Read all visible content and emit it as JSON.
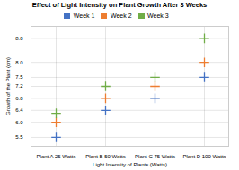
{
  "chart_data": {
    "type": "scatter",
    "title": "Effect of Light Intensity on Plant Growth After 3 Weeks",
    "xlabel": "Light Intensity of Plants (Watts)",
    "ylabel": "Growth of the Plant (cm)",
    "categories": [
      "Plant A 25 Watts",
      "Plant B 50 Watts",
      "Plant C 75 Watts",
      "Plant D 100 Watts"
    ],
    "series": [
      {
        "name": "Week 1",
        "color": "#4472c4",
        "marker": "plus",
        "values": [
          5.5,
          6.4,
          6.8,
          7.5
        ]
      },
      {
        "name": "Week 2",
        "color": "#ed7d31",
        "marker": "plus",
        "values": [
          6.0,
          6.8,
          7.2,
          8.0
        ]
      },
      {
        "name": "Week 3",
        "color": "#70ad47",
        "marker": "plus",
        "values": [
          6.3,
          7.2,
          7.5,
          8.8
        ]
      }
    ],
    "ylim": [
      5.2,
      9.2
    ],
    "yticks": [
      5.5,
      {
        "value": 6.0,
        "label": "6.0"
      },
      6.4,
      6.8,
      7.2,
      7.5,
      {
        "value": 8.0,
        "label": "8.0"
      },
      8.8
    ],
    "grid": true,
    "legend": "top"
  }
}
